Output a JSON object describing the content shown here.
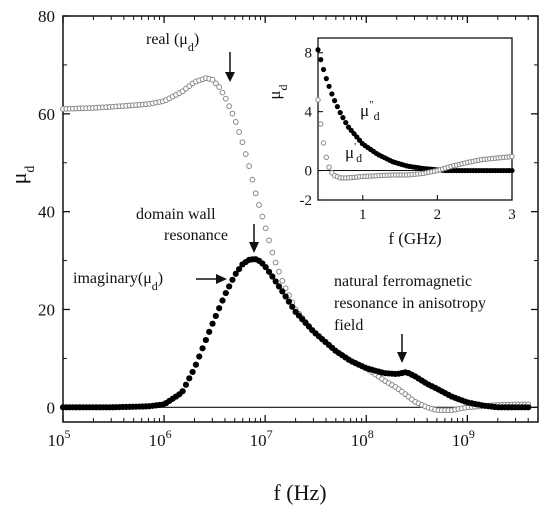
{
  "chart_data": [
    {
      "type": "line",
      "xscale": "log",
      "xlabel": "f (Hz)",
      "ylabel": "μd",
      "xlim": [
        100000,
        5000000000
      ],
      "ylim": [
        -3,
        80
      ],
      "xticks": [
        100000,
        1000000,
        10000000,
        100000000,
        1000000000
      ],
      "xtick_labels": [
        [
          "10",
          "5"
        ],
        [
          "10",
          "6"
        ],
        [
          "10",
          "7"
        ],
        [
          "10",
          "8"
        ],
        [
          "10",
          "9"
        ]
      ],
      "yticks": [
        0,
        20,
        40,
        60,
        80
      ],
      "ytick_labels": [
        "0",
        "20",
        "40",
        "60",
        "80"
      ],
      "series": [
        {
          "name": "real",
          "style": "open-circles",
          "color": "#888888",
          "x": [
            100000,
            200000,
            400000,
            700000,
            1000000,
            1500000,
            2000000,
            2600000,
            3000000,
            3500000,
            4000000,
            5000000,
            6000000,
            7000000,
            8000000,
            10000000,
            12000000,
            15000000,
            20000000,
            30000000,
            50000000,
            70000000,
            100000000,
            150000000,
            200000000,
            250000000,
            300000000,
            400000000,
            500000000,
            700000000,
            1000000000,
            2000000000,
            3000000000,
            4000000000
          ],
          "y": [
            61,
            61.2,
            61.6,
            62,
            62.6,
            64.5,
            66.5,
            67.3,
            67,
            65.5,
            63.5,
            59,
            54,
            49,
            44,
            37,
            31,
            25.5,
            20,
            15.5,
            11.5,
            9.5,
            8,
            5.5,
            4,
            2.5,
            1.2,
            0,
            -0.6,
            -0.6,
            0,
            0.5,
            0.6,
            0.6
          ]
        },
        {
          "name": "imaginary",
          "style": "filled-circles",
          "color": "#000000",
          "x": [
            100000,
            300000,
            700000,
            1000000,
            1500000,
            2000000,
            3000000,
            4000000,
            5000000,
            6000000,
            7000000,
            8000000,
            9000000,
            10000000,
            12000000,
            15000000,
            20000000,
            30000000,
            50000000,
            70000000,
            100000000,
            150000000,
            200000000,
            250000000,
            300000000,
            400000000,
            500000000,
            700000000,
            1000000000,
            1500000000,
            2000000000,
            3000000000,
            4000000000
          ],
          "y": [
            0,
            0,
            0.2,
            0.6,
            3,
            8,
            17,
            23,
            27,
            29.3,
            30.2,
            30.3,
            29.8,
            28.8,
            26.5,
            23.5,
            19.5,
            15.5,
            11.5,
            9.5,
            8,
            7,
            6.8,
            7.2,
            6.4,
            4.8,
            3.8,
            2.2,
            1,
            0.3,
            0,
            0,
            0
          ]
        }
      ],
      "annotations": [
        {
          "text": "real (μd)",
          "arrow_to": [
            4500000,
            64
          ]
        },
        {
          "text": "domain wall resonance",
          "arrow_to": [
            8500000,
            31
          ]
        },
        {
          "text": "imaginary(μd)",
          "arrow_to": [
            8000000,
            27
          ]
        },
        {
          "text": "natural ferromagnetic resonance in anisotropy field",
          "arrow_to": [
            250000000,
            7.5
          ]
        }
      ]
    },
    {
      "type": "line",
      "xlabel": "f (GHz)",
      "ylabel": "μd",
      "xlim": [
        0.4,
        3
      ],
      "ylim": [
        -2,
        9
      ],
      "xticks": [
        1,
        2,
        3
      ],
      "xtick_labels": [
        "1",
        "2",
        "3"
      ],
      "yticks": [
        -2,
        0,
        4,
        8
      ],
      "ytick_labels": [
        "-2",
        "0",
        "4",
        "8"
      ],
      "series": [
        {
          "name": "μ''d",
          "style": "filled-circles",
          "color": "#000000",
          "x": [
            0.4,
            0.5,
            0.6,
            0.7,
            0.8,
            1.0,
            1.2,
            1.4,
            1.6,
            1.8,
            2.0,
            2.1,
            2.2,
            2.3,
            2.5,
            2.7,
            3.0
          ],
          "y": [
            8.2,
            6.4,
            5.0,
            3.9,
            3.0,
            1.8,
            1.1,
            0.6,
            0.3,
            0.15,
            0.05,
            0.0,
            0.0,
            0.0,
            0.0,
            0.0,
            0.0
          ]
        },
        {
          "name": "μ'd",
          "style": "open-circles",
          "color": "#888888",
          "x": [
            0.4,
            0.45,
            0.5,
            0.55,
            0.6,
            0.7,
            0.8,
            1.0,
            1.2,
            1.4,
            1.6,
            1.8,
            2.0,
            2.2,
            2.4,
            2.6,
            2.8,
            3.0
          ],
          "y": [
            4.8,
            2.6,
            1.1,
            0.2,
            -0.3,
            -0.5,
            -0.5,
            -0.4,
            -0.35,
            -0.3,
            -0.3,
            -0.2,
            0.0,
            0.3,
            0.55,
            0.75,
            0.85,
            0.95
          ]
        }
      ]
    }
  ]
}
